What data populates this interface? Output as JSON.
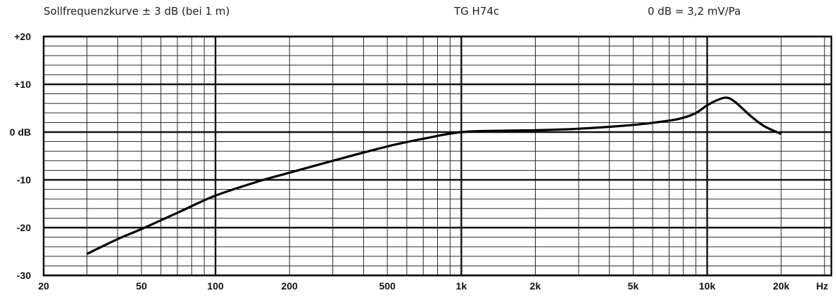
{
  "header": {
    "left": "Sollfrequenzkurve ± 3 dB (bei 1 m)",
    "center": "TG H74c",
    "right": "0 dB = 3,2 mV/Pa"
  },
  "chart_data": {
    "type": "line",
    "title": "TG H74c",
    "subtitle": "Sollfrequenzkurve ± 3 dB (bei 1 m)",
    "reference": "0 dB = 3,2 mV/Pa",
    "xscale": "log",
    "xlim": [
      20,
      32000
    ],
    "ylim": [
      -30,
      20
    ],
    "grid": true,
    "x_ticks": [
      20,
      50,
      100,
      200,
      500,
      1000,
      2000,
      5000,
      10000,
      20000
    ],
    "x_tick_labels": [
      "20",
      "50",
      "100",
      "200",
      "500",
      "1k",
      "2k",
      "5k",
      "10k",
      "20k"
    ],
    "x_unit_label": "Hz",
    "y_ticks": [
      20,
      10,
      0,
      -10,
      -20,
      -30
    ],
    "y_tick_labels": [
      "+20",
      "+10",
      "0 dB",
      "-10",
      "-20",
      "-30"
    ],
    "series": [
      {
        "x": [
          30,
          40,
          50,
          70,
          100,
          150,
          200,
          300,
          500,
          700,
          1000,
          1500,
          2000,
          3000,
          5000,
          7000,
          8000,
          9000,
          10000,
          11000,
          12000,
          13000,
          15000,
          17000,
          20000
        ],
        "y": [
          -25.5,
          -22.4,
          -20.3,
          -16.9,
          -13.3,
          -10.3,
          -8.5,
          -6.0,
          -3.0,
          -1.4,
          0.0,
          0.3,
          0.4,
          0.7,
          1.5,
          2.4,
          3.0,
          4.0,
          5.6,
          6.7,
          7.2,
          6.3,
          3.4,
          1.3,
          -0.4
        ]
      }
    ]
  }
}
